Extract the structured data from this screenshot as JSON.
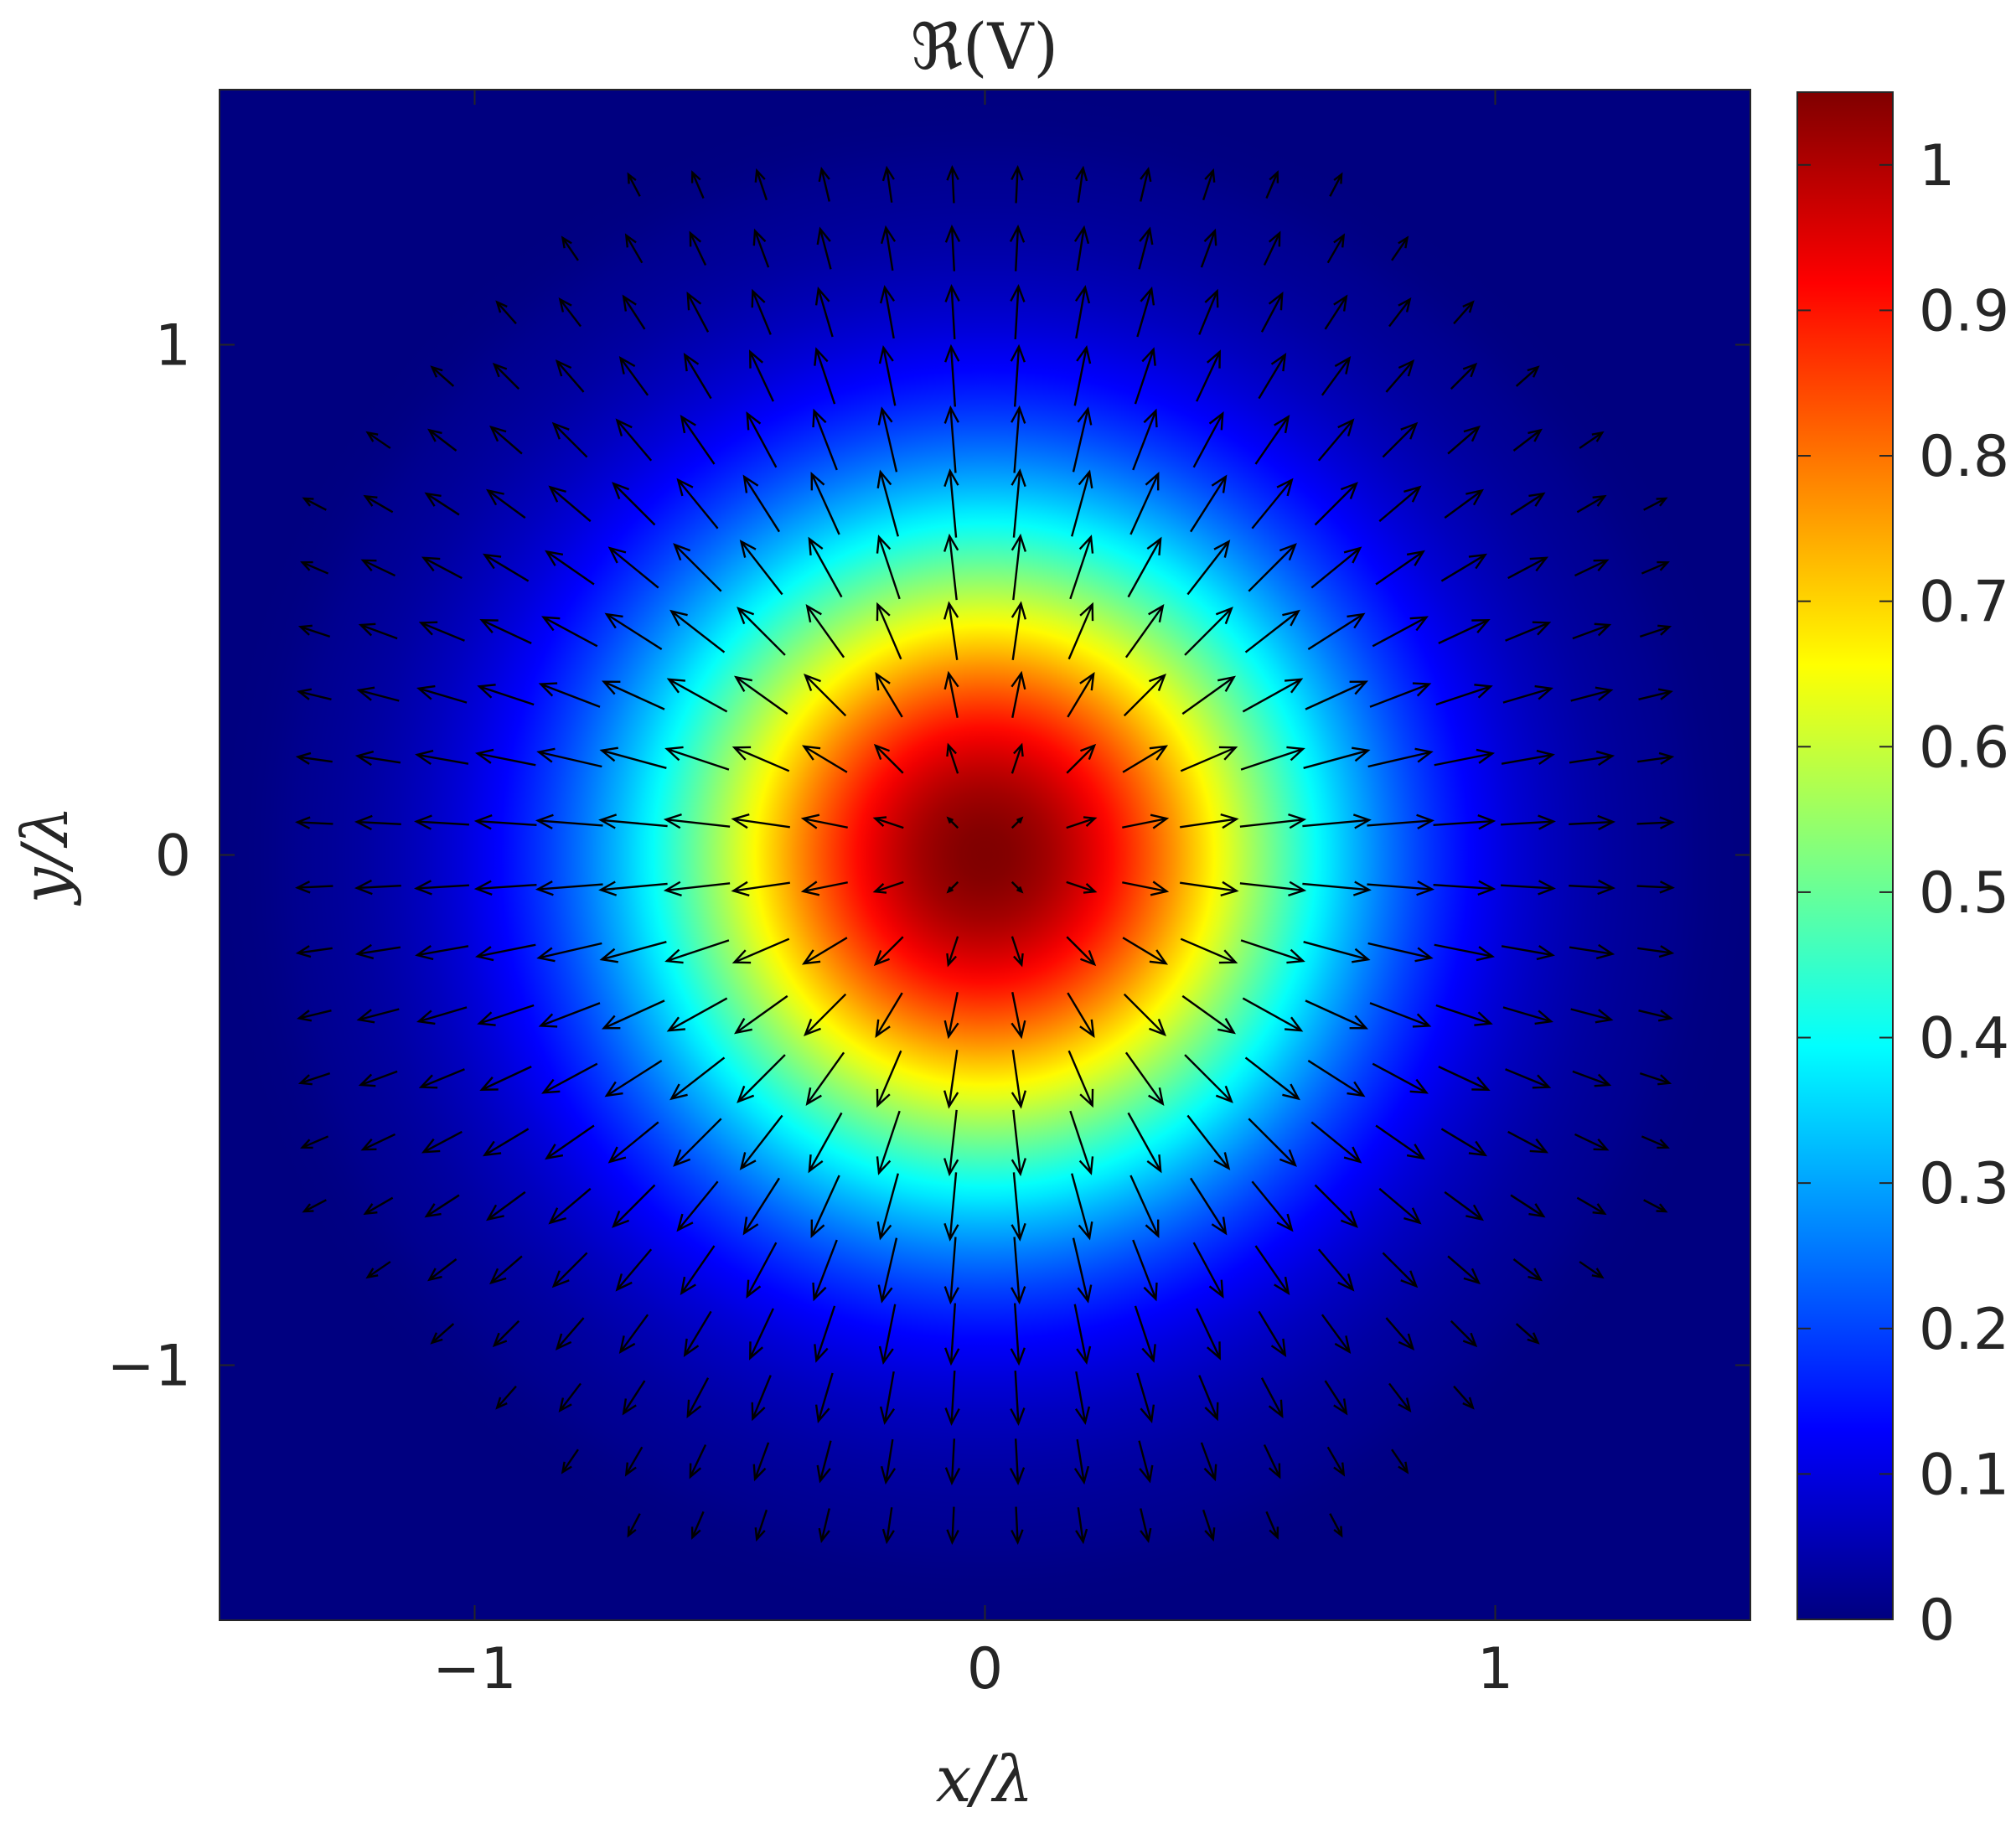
{
  "chart_data": {
    "type": "heatmap",
    "title": "ℜ(V)",
    "xlabel": "x/λ",
    "ylabel": "y/λ",
    "xlim": [
      -1.5,
      1.5
    ],
    "ylim": [
      -1.5,
      1.5
    ],
    "x_ticks": [
      {
        "value": -1,
        "label": "−1"
      },
      {
        "value": 0,
        "label": "0"
      },
      {
        "value": 1,
        "label": "1"
      }
    ],
    "y_ticks": [
      {
        "value": -1,
        "label": "−1"
      },
      {
        "value": 0,
        "label": "0"
      },
      {
        "value": 1,
        "label": "1"
      }
    ],
    "colorbar": {
      "colormap": "jet",
      "range": [
        0,
        1.05
      ],
      "ticks": [
        {
          "value": 0,
          "label": "0"
        },
        {
          "value": 0.1,
          "label": "0.1"
        },
        {
          "value": 0.2,
          "label": "0.2"
        },
        {
          "value": 0.3,
          "label": "0.3"
        },
        {
          "value": 0.4,
          "label": "0.4"
        },
        {
          "value": 0.5,
          "label": "0.5"
        },
        {
          "value": 0.6,
          "label": "0.6"
        },
        {
          "value": 0.7,
          "label": "0.7"
        },
        {
          "value": 0.8,
          "label": "0.8"
        },
        {
          "value": 0.9,
          "label": "0.9"
        },
        {
          "value": 1,
          "label": "1"
        }
      ]
    },
    "field": {
      "peak_value": 1.05,
      "center": [
        0,
        0
      ],
      "half_max_radius": 0.55,
      "profile": "radially symmetric, maximum at origin, decaying to ~0 near r = 1.4"
    },
    "vector_field": {
      "pattern": "radial outward arrows",
      "grid_spacing": 0.125,
      "peak_magnitude_radius": 0.7,
      "arrow_color": "#000000"
    },
    "grid": false,
    "legend": "none"
  }
}
